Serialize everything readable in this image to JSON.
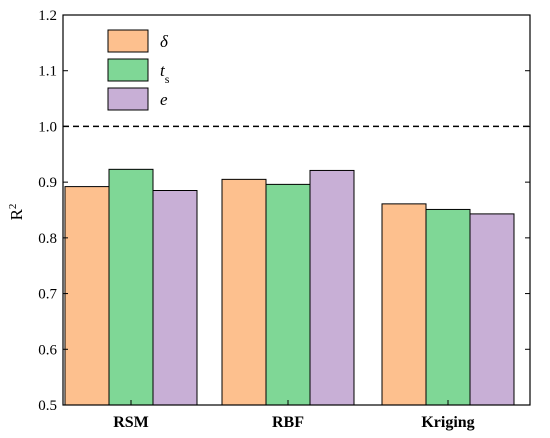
{
  "chart_data": {
    "type": "bar",
    "ylabel": "R",
    "ylabel_superscript": "2",
    "ylim": [
      0.5,
      1.2
    ],
    "yticks": [
      0.5,
      0.6,
      0.7,
      0.8,
      0.9,
      1.0,
      1.1,
      1.2
    ],
    "ytick_labels": [
      "0.5",
      "0.6",
      "0.7",
      "0.8",
      "0.9",
      "1.0",
      "1.1",
      "1.2"
    ],
    "categories": [
      "RSM",
      "RBF",
      "Kriging"
    ],
    "reference_line": {
      "y": 1.0,
      "style": "dashed"
    },
    "legend_position": "top-left",
    "grid": false,
    "series": [
      {
        "name": "δ",
        "color": "#FDC08E",
        "values": [
          0.892,
          0.905,
          0.861
        ]
      },
      {
        "name": "t",
        "name_subscript": "s",
        "color": "#7FD796",
        "values": [
          0.923,
          0.896,
          0.851
        ]
      },
      {
        "name": "e",
        "color": "#C8AFD6",
        "values": [
          0.885,
          0.921,
          0.843
        ]
      }
    ]
  }
}
